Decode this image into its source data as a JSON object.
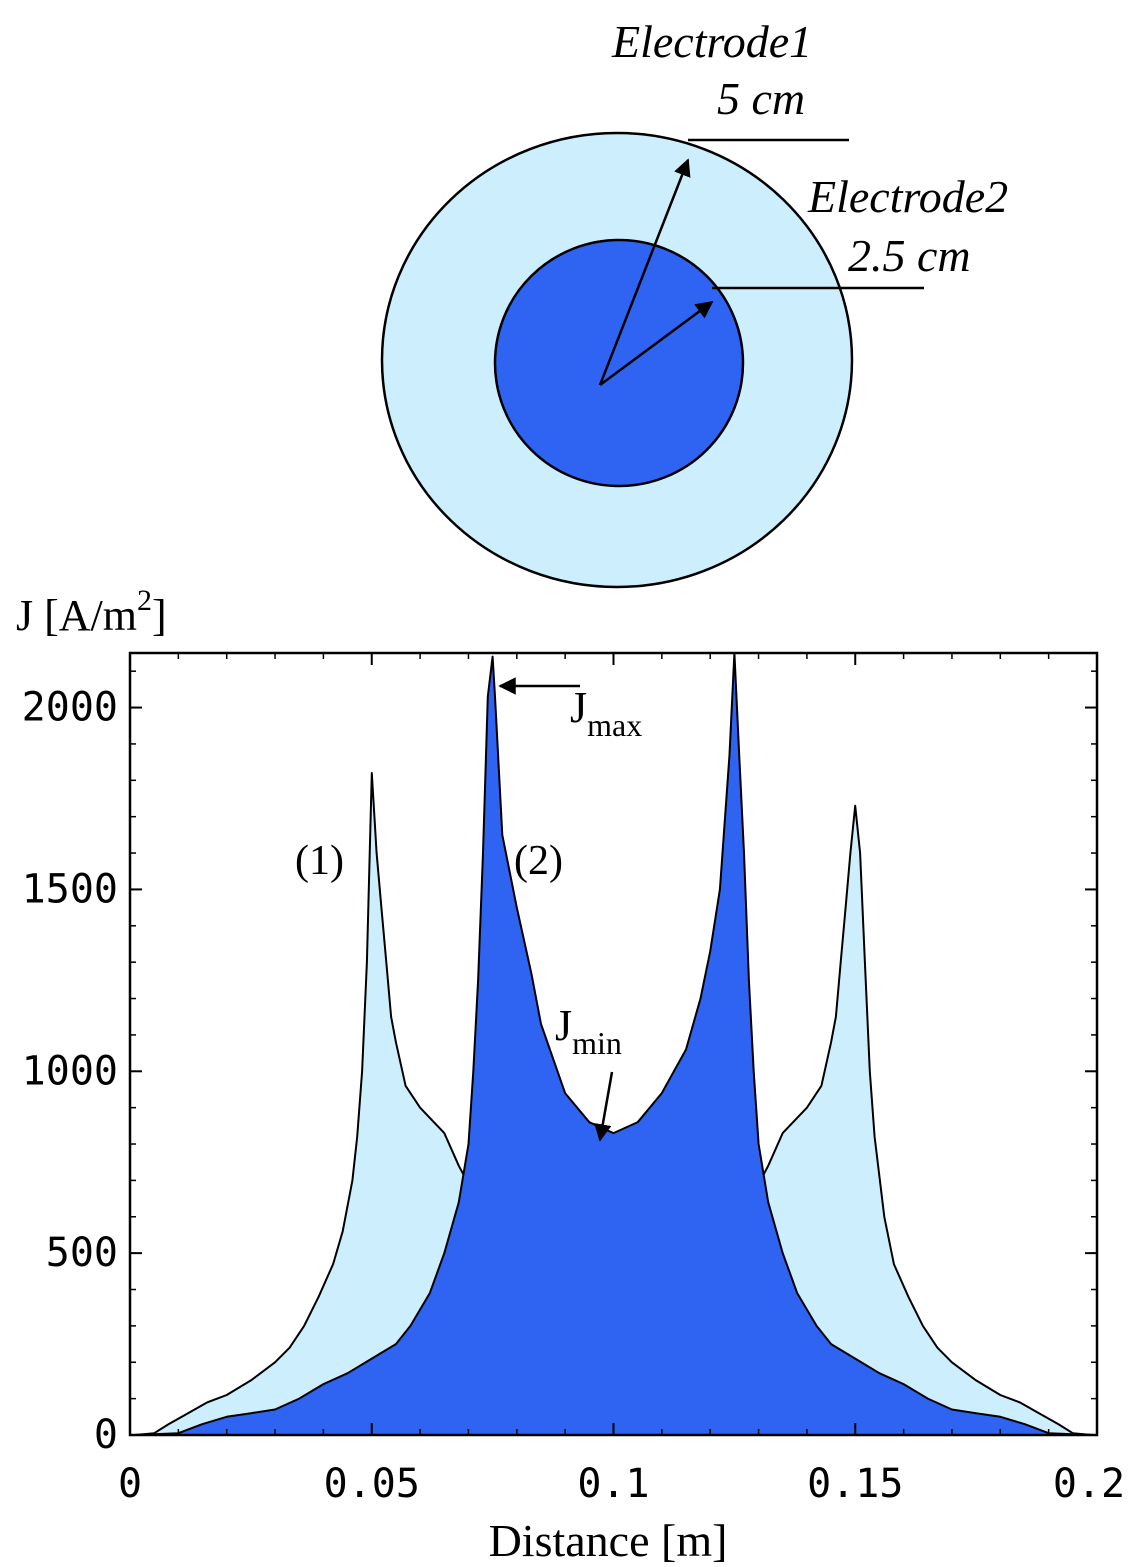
{
  "diagram": {
    "electrode1": {
      "name": "Electrode1",
      "size": "5 cm"
    },
    "electrode2": {
      "name": "Electrode2",
      "size": "2.5 cm"
    },
    "colors": {
      "outer_fill": "#cdeefc",
      "inner_fill": "#2f63f2",
      "stroke": "#000000"
    }
  },
  "chart_data": {
    "type": "area",
    "ylabel": "J [A/m",
    "ylabel_sup": "2",
    "ylabel_end": "]",
    "xlabel": "Distance [m]",
    "xlim": [
      0,
      0.2
    ],
    "ylim": [
      0,
      2150
    ],
    "xticks": [
      0,
      0.05,
      0.1,
      0.15,
      0.2
    ],
    "xtick_labels": [
      "0",
      "0.05",
      "0.1",
      "0.15",
      "0.2"
    ],
    "yticks": [
      0,
      500,
      1000,
      1500,
      2000
    ],
    "ytick_labels": [
      "0",
      "500",
      "1000",
      "1500",
      "2000"
    ],
    "series": [
      {
        "label": "(1)",
        "color": "#cdeefc",
        "points": [
          [
            0.001,
            0
          ],
          [
            0.005,
            5
          ],
          [
            0.008,
            30
          ],
          [
            0.012,
            60
          ],
          [
            0.016,
            90
          ],
          [
            0.02,
            110
          ],
          [
            0.025,
            150
          ],
          [
            0.03,
            200
          ],
          [
            0.033,
            240
          ],
          [
            0.036,
            300
          ],
          [
            0.039,
            380
          ],
          [
            0.042,
            470
          ],
          [
            0.044,
            560
          ],
          [
            0.046,
            700
          ],
          [
            0.047,
            820
          ],
          [
            0.048,
            1000
          ],
          [
            0.049,
            1300
          ],
          [
            0.05,
            1820
          ],
          [
            0.051,
            1600
          ],
          [
            0.052,
            1450
          ],
          [
            0.053,
            1300
          ],
          [
            0.054,
            1150
          ],
          [
            0.055,
            1080
          ],
          [
            0.057,
            960
          ],
          [
            0.06,
            900
          ],
          [
            0.065,
            830
          ],
          [
            0.068,
            740
          ],
          [
            0.07,
            690
          ],
          [
            0.075,
            690
          ],
          [
            0.08,
            700
          ],
          [
            0.09,
            720
          ],
          [
            0.1,
            760
          ],
          [
            0.11,
            720
          ],
          [
            0.12,
            700
          ],
          [
            0.125,
            690
          ],
          [
            0.13,
            690
          ],
          [
            0.132,
            740
          ],
          [
            0.135,
            830
          ],
          [
            0.14,
            900
          ],
          [
            0.143,
            960
          ],
          [
            0.145,
            1080
          ],
          [
            0.146,
            1150
          ],
          [
            0.147,
            1300
          ],
          [
            0.148,
            1450
          ],
          [
            0.149,
            1600
          ],
          [
            0.15,
            1730
          ],
          [
            0.151,
            1600
          ],
          [
            0.152,
            1300
          ],
          [
            0.153,
            1000
          ],
          [
            0.154,
            820
          ],
          [
            0.156,
            600
          ],
          [
            0.158,
            470
          ],
          [
            0.161,
            380
          ],
          [
            0.164,
            300
          ],
          [
            0.167,
            240
          ],
          [
            0.17,
            200
          ],
          [
            0.175,
            150
          ],
          [
            0.18,
            110
          ],
          [
            0.184,
            90
          ],
          [
            0.188,
            60
          ],
          [
            0.192,
            30
          ],
          [
            0.195,
            5
          ],
          [
            0.199,
            0
          ]
        ]
      },
      {
        "label": "(2)",
        "color": "#2f63f2",
        "points": [
          [
            0.001,
            0
          ],
          [
            0.01,
            5
          ],
          [
            0.015,
            30
          ],
          [
            0.02,
            50
          ],
          [
            0.025,
            60
          ],
          [
            0.03,
            70
          ],
          [
            0.035,
            100
          ],
          [
            0.04,
            140
          ],
          [
            0.045,
            170
          ],
          [
            0.05,
            210
          ],
          [
            0.055,
            250
          ],
          [
            0.058,
            300
          ],
          [
            0.062,
            390
          ],
          [
            0.065,
            500
          ],
          [
            0.068,
            640
          ],
          [
            0.07,
            800
          ],
          [
            0.071,
            1000
          ],
          [
            0.072,
            1250
          ],
          [
            0.073,
            1600
          ],
          [
            0.074,
            2030
          ],
          [
            0.075,
            2140
          ],
          [
            0.0755,
            2030
          ],
          [
            0.077,
            1650
          ],
          [
            0.08,
            1450
          ],
          [
            0.083,
            1270
          ],
          [
            0.085,
            1130
          ],
          [
            0.09,
            940
          ],
          [
            0.095,
            860
          ],
          [
            0.1,
            830
          ],
          [
            0.105,
            860
          ],
          [
            0.11,
            940
          ],
          [
            0.115,
            1060
          ],
          [
            0.118,
            1200
          ],
          [
            0.12,
            1330
          ],
          [
            0.122,
            1500
          ],
          [
            0.124,
            1870
          ],
          [
            0.125,
            2150
          ],
          [
            0.126,
            1870
          ],
          [
            0.127,
            1600
          ],
          [
            0.128,
            1250
          ],
          [
            0.129,
            1000
          ],
          [
            0.13,
            800
          ],
          [
            0.132,
            640
          ],
          [
            0.135,
            500
          ],
          [
            0.138,
            390
          ],
          [
            0.142,
            300
          ],
          [
            0.145,
            250
          ],
          [
            0.15,
            210
          ],
          [
            0.155,
            170
          ],
          [
            0.16,
            140
          ],
          [
            0.165,
            100
          ],
          [
            0.17,
            70
          ],
          [
            0.175,
            60
          ],
          [
            0.18,
            50
          ],
          [
            0.185,
            30
          ],
          [
            0.19,
            5
          ],
          [
            0.199,
            0
          ]
        ]
      }
    ],
    "annotations": {
      "jmax": {
        "main": "J",
        "sub": "max",
        "point": [
          0.075,
          2140
        ]
      },
      "jmin": {
        "main": "J",
        "sub": "min",
        "point": [
          0.098,
          830
        ]
      }
    }
  }
}
